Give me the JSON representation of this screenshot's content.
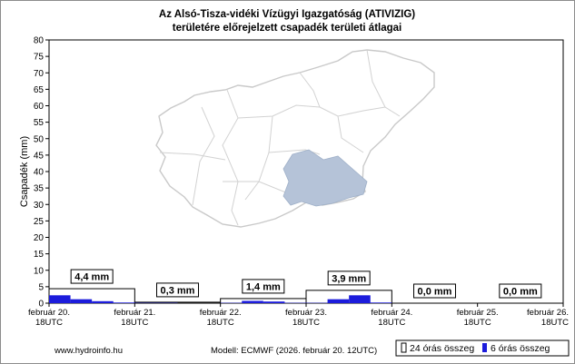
{
  "chart_data": {
    "type": "bar",
    "title": "Az Alsó-Tisza-vidéki Vízügyi Igazgatóság (ATIVIZIG)",
    "subtitle": "területére előrejelzett csapadék területi átlagai",
    "ylabel": "Csapadék (mm)",
    "ylim": [
      0,
      80
    ],
    "yticks": [
      "0",
      "5",
      "10",
      "15",
      "20",
      "25",
      "30",
      "35",
      "40",
      "45",
      "50",
      "55",
      "60",
      "65",
      "70",
      "75",
      "80"
    ],
    "xticks": [
      {
        "line1": "február 20.",
        "line2": "18UTC"
      },
      {
        "line1": "február 21.",
        "line2": "18UTC"
      },
      {
        "line1": "február 22.",
        "line2": "18UTC"
      },
      {
        "line1": "február 23.",
        "line2": "18UTC"
      },
      {
        "line1": "február 24.",
        "line2": "18UTC"
      },
      {
        "line1": "február 25.",
        "line2": "18UTC"
      },
      {
        "line1": "február 26.",
        "line2": "18UTC"
      }
    ],
    "series": [
      {
        "name": "24 órás összeg",
        "color": "#ffffff",
        "values": [
          4.4,
          0.3,
          1.4,
          3.9,
          0.0,
          0.0
        ],
        "labels": [
          "4,4 mm",
          "0,3 mm",
          "1,4 mm",
          "3,9 mm",
          "0,0 mm",
          "0,0 mm"
        ]
      },
      {
        "name": "6 órás összeg",
        "color": "#1c1cdc",
        "values": [
          2.4,
          1.2,
          0.6,
          0.2,
          0.1,
          0.1,
          0.0,
          0.0,
          0.1,
          0.7,
          0.5,
          0.1,
          0.1,
          1.2,
          2.4,
          0.2,
          0.0,
          0.0,
          0.0,
          0.0,
          0.0,
          0.0,
          0.0,
          0.0
        ]
      }
    ],
    "grid": false,
    "legend_position": "bottom-right"
  },
  "footer": {
    "source": "www.hydroinfo.hu",
    "model": "Modell: ECMWF (2026. február 20. 12UTC)"
  },
  "legend": {
    "item1": "24 órás összeg",
    "item2": "6 órás összeg"
  },
  "map": {
    "region_color": "#b5c3d8",
    "outline_color": "#c8c8c8"
  }
}
